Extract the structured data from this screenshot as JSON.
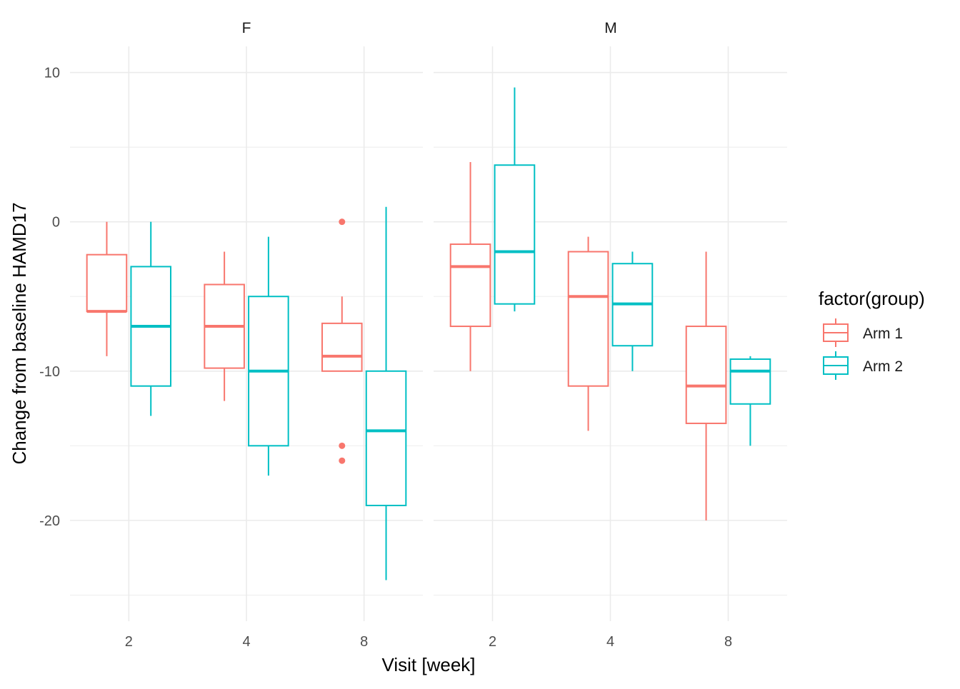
{
  "chart_data": {
    "type": "boxplot",
    "facet_by": "sex",
    "facets": [
      "F",
      "M"
    ],
    "categories": [
      "2",
      "4",
      "8"
    ],
    "xlabel": "Visit [week]",
    "ylabel": "Change from baseline HAMD17",
    "ylim": [
      -25,
      10
    ],
    "yticks": [
      10,
      0,
      -10,
      -20
    ],
    "grid": true,
    "legend": {
      "title": "factor(group)",
      "position": "right",
      "entries": [
        {
          "name": "Arm 1",
          "color": "#F8766D"
        },
        {
          "name": "Arm 2",
          "color": "#00BFC4"
        }
      ]
    },
    "series": [
      {
        "name": "Arm 1",
        "color": "#F8766D",
        "panels": {
          "F": [
            {
              "x": "2",
              "low": -9,
              "q1": -6,
              "median": -6,
              "q3": -2.2,
              "high": 0,
              "outliers": []
            },
            {
              "x": "4",
              "low": -12,
              "q1": -9.8,
              "median": -7,
              "q3": -4.2,
              "high": -2,
              "outliers": []
            },
            {
              "x": "8",
              "low": -10,
              "q1": -10,
              "median": -9,
              "q3": -6.8,
              "high": -5,
              "outliers": [
                0,
                -15,
                -16
              ]
            }
          ],
          "M": [
            {
              "x": "2",
              "low": -10,
              "q1": -7,
              "median": -3,
              "q3": -1.5,
              "high": 4,
              "outliers": []
            },
            {
              "x": "4",
              "low": -14,
              "q1": -11,
              "median": -5,
              "q3": -2,
              "high": -1,
              "outliers": []
            },
            {
              "x": "8",
              "low": -20,
              "q1": -13.5,
              "median": -11,
              "q3": -7,
              "high": -2,
              "outliers": []
            }
          ]
        }
      },
      {
        "name": "Arm 2",
        "color": "#00BFC4",
        "panels": {
          "F": [
            {
              "x": "2",
              "low": -13,
              "q1": -11,
              "median": -7,
              "q3": -3,
              "high": 0,
              "outliers": []
            },
            {
              "x": "4",
              "low": -17,
              "q1": -15,
              "median": -10,
              "q3": -5,
              "high": -1,
              "outliers": []
            },
            {
              "x": "8",
              "low": -24,
              "q1": -19,
              "median": -14,
              "q3": -10,
              "high": 1,
              "outliers": []
            }
          ],
          "M": [
            {
              "x": "2",
              "low": -6,
              "q1": -5.5,
              "median": -2,
              "q3": 3.8,
              "high": 9,
              "outliers": []
            },
            {
              "x": "4",
              "low": -10,
              "q1": -8.3,
              "median": -5.5,
              "q3": -2.8,
              "high": -2,
              "outliers": []
            },
            {
              "x": "8",
              "low": -15,
              "q1": -12.2,
              "median": -10,
              "q3": -9.2,
              "high": -9,
              "outliers": []
            }
          ]
        }
      }
    ]
  }
}
